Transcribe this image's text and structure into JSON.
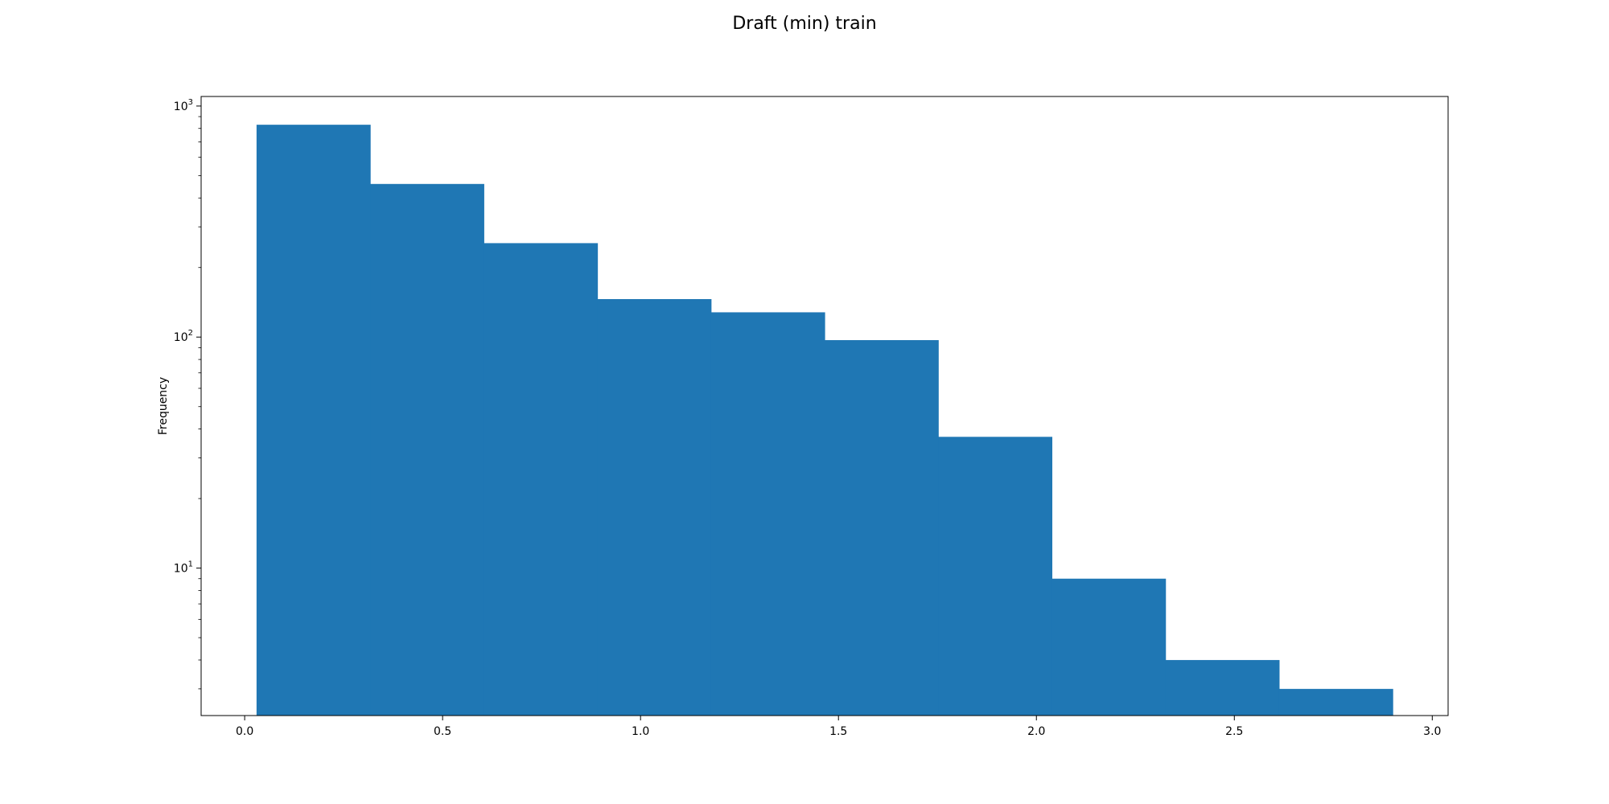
{
  "chart_data": {
    "type": "bar",
    "title": "Draft (min) train",
    "xlabel": "",
    "ylabel": "Frequency",
    "y_scale": "log",
    "grid": false,
    "bar_color": "#1f77b4",
    "xlim": [
      -0.11,
      3.04
    ],
    "ylim": [
      2.3,
      1100
    ],
    "x_ticks": [
      {
        "value": 0.0,
        "label": "0.0"
      },
      {
        "value": 0.5,
        "label": "0.5"
      },
      {
        "value": 1.0,
        "label": "1.0"
      },
      {
        "value": 1.5,
        "label": "1.5"
      },
      {
        "value": 2.0,
        "label": "2.0"
      },
      {
        "value": 2.5,
        "label": "2.5"
      },
      {
        "value": 3.0,
        "label": "3.0"
      }
    ],
    "y_ticks": [
      {
        "value": 10,
        "base": "10",
        "exp": "1"
      },
      {
        "value": 100,
        "base": "10",
        "exp": "2"
      },
      {
        "value": 1000,
        "base": "10",
        "exp": "3"
      }
    ],
    "bins": [
      {
        "start": 0.03,
        "end": 0.317,
        "count": 830
      },
      {
        "start": 0.317,
        "end": 0.604,
        "count": 460
      },
      {
        "start": 0.604,
        "end": 0.891,
        "count": 255
      },
      {
        "start": 0.891,
        "end": 1.178,
        "count": 146
      },
      {
        "start": 1.178,
        "end": 1.465,
        "count": 128
      },
      {
        "start": 1.465,
        "end": 1.752,
        "count": 97
      },
      {
        "start": 1.752,
        "end": 2.039,
        "count": 37
      },
      {
        "start": 2.039,
        "end": 2.326,
        "count": 9
      },
      {
        "start": 2.326,
        "end": 2.613,
        "count": 4
      },
      {
        "start": 2.613,
        "end": 2.9,
        "count": 3
      }
    ]
  }
}
